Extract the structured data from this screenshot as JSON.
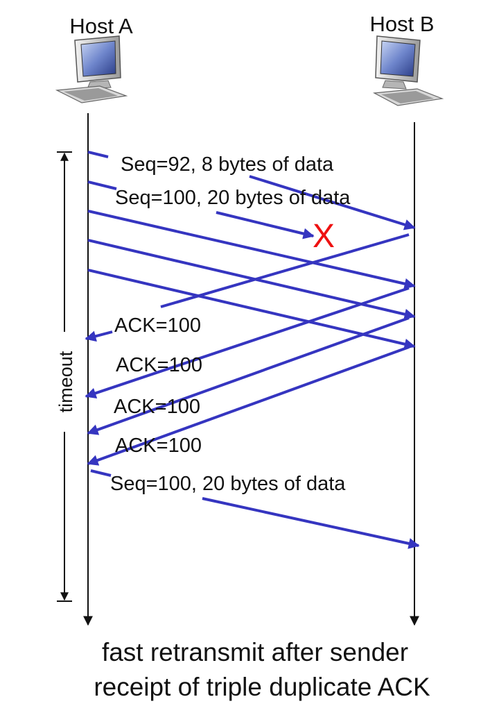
{
  "hosts": {
    "a_label": "Host A",
    "b_label": "Host B"
  },
  "timeout_label": "timeout",
  "messages": {
    "seq92": "Seq=92, 8 bytes of data",
    "seq100": "Seq=100, 20 bytes of data",
    "ack1": "ACK=100",
    "ack2": "ACK=100",
    "ack3": "ACK=100",
    "ack4": "ACK=100",
    "retransmit": "Seq=100, 20 bytes of data"
  },
  "loss_marker": "X",
  "caption": {
    "line1": "fast retransmit after sender",
    "line2": "receipt of triple duplicate ACK"
  },
  "colors": {
    "arrow": "#3535c0",
    "loss": "#ee1111",
    "timeline": "#111111"
  },
  "icons": [
    "computer-icon-host-a",
    "computer-icon-host-b"
  ]
}
